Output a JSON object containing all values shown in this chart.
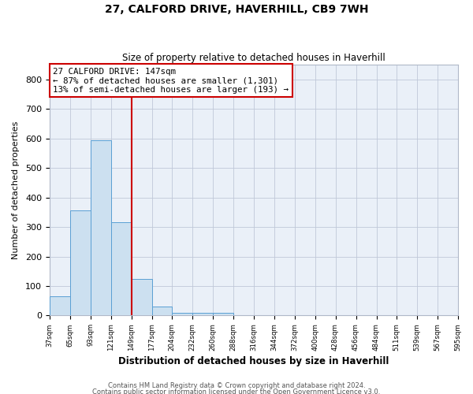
{
  "title1": "27, CALFORD DRIVE, HAVERHILL, CB9 7WH",
  "title2": "Size of property relative to detached houses in Haverhill",
  "xlabel": "Distribution of detached houses by size in Haverhill",
  "ylabel": "Number of detached properties",
  "bin_edges": [
    37,
    65,
    93,
    121,
    149,
    177,
    204,
    232,
    260,
    288,
    316,
    344,
    372,
    400,
    428,
    456,
    484,
    511,
    539,
    567,
    595
  ],
  "bar_heights": [
    65,
    355,
    595,
    315,
    125,
    30,
    10,
    10,
    10,
    0,
    0,
    0,
    0,
    0,
    0,
    0,
    0,
    0,
    0,
    0
  ],
  "bar_facecolor": "#cce0f0",
  "bar_edgecolor": "#5a9fd4",
  "vline_x": 149,
  "vline_color": "#cc0000",
  "annotation_text": "27 CALFORD DRIVE: 147sqm\n← 87% of detached houses are smaller (1,301)\n13% of semi-detached houses are larger (193) →",
  "annotation_box_color": "#ffffff",
  "annotation_box_edge": "#cc0000",
  "ylim": [
    0,
    850
  ],
  "xlim": [
    37,
    595
  ],
  "background_color": "#eaf0f8",
  "footer1": "Contains HM Land Registry data © Crown copyright and database right 2024.",
  "footer2": "Contains public sector information licensed under the Open Government Licence v3.0.",
  "tick_labels": [
    "37sqm",
    "65sqm",
    "93sqm",
    "121sqm",
    "149sqm",
    "177sqm",
    "204sqm",
    "232sqm",
    "260sqm",
    "288sqm",
    "316sqm",
    "344sqm",
    "372sqm",
    "400sqm",
    "428sqm",
    "456sqm",
    "484sqm",
    "511sqm",
    "539sqm",
    "567sqm",
    "595sqm"
  ],
  "yticks": [
    0,
    100,
    200,
    300,
    400,
    500,
    600,
    700,
    800
  ]
}
